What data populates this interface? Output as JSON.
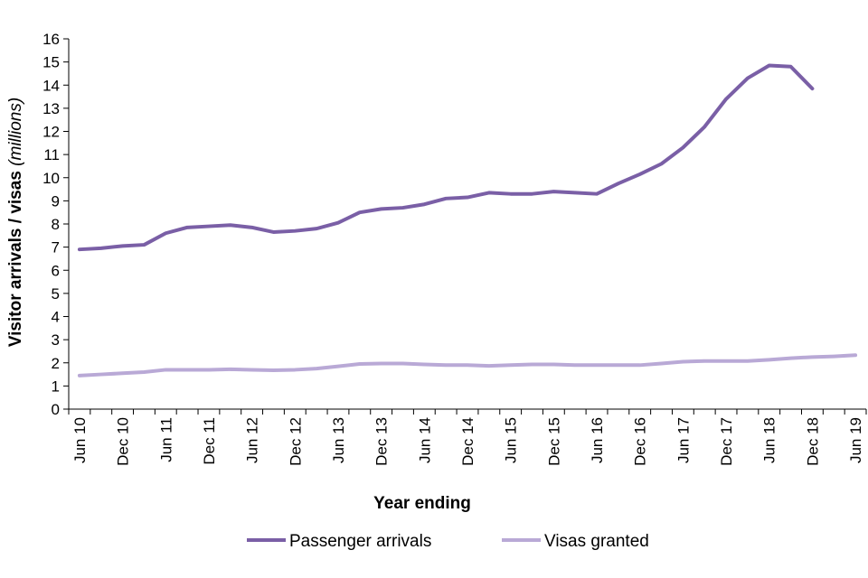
{
  "chart_data": {
    "type": "line",
    "title": "",
    "xlabel": "Year ending",
    "ylabel": "Visitor arrivals / visas",
    "ylabel_unit": "(millions)",
    "ylim": [
      0,
      16
    ],
    "y_ticks": [
      "0",
      "1",
      "2",
      "3",
      "4",
      "5",
      "6",
      "7",
      "8",
      "9",
      "10",
      "11",
      "12",
      "13",
      "14",
      "15",
      "16"
    ],
    "grid": false,
    "legend_position": "bottom",
    "x": [
      "Jun 10",
      "Sep 10",
      "Dec 10",
      "Mar 11",
      "Jun 11",
      "Sep 11",
      "Dec 11",
      "Mar 12",
      "Jun 12",
      "Sep 12",
      "Dec 12",
      "Mar 13",
      "Jun 13",
      "Sep 13",
      "Dec 13",
      "Mar 14",
      "Jun 14",
      "Sep 14",
      "Dec 14",
      "Mar 15",
      "Jun 15",
      "Sep 15",
      "Dec 15",
      "Mar 16",
      "Jun 16",
      "Sep 16",
      "Dec 16",
      "Mar 17",
      "Jun 17",
      "Sep 17",
      "Dec 17",
      "Mar 18",
      "Jun 18",
      "Sep 18",
      "Dec 18",
      "Mar 19",
      "Jun 19"
    ],
    "tick_labels": [
      "Jun 10",
      "Dec 10",
      "Jun 11",
      "Dec 11",
      "Jun 12",
      "Dec 12",
      "Jun 13",
      "Dec 13",
      "Jun 14",
      "Dec 14",
      "Jun 15",
      "Dec 15",
      "Jun 16",
      "Dec 16",
      "Jun 17",
      "Dec 17",
      "Jun 18",
      "Dec 18",
      "Jun 19"
    ],
    "series": [
      {
        "name": "Passenger arrivals",
        "color": "#7a5fa6",
        "values": [
          6.9,
          6.95,
          7.05,
          7.1,
          7.6,
          7.85,
          7.9,
          7.95,
          7.85,
          7.65,
          7.7,
          7.8,
          8.05,
          8.5,
          8.65,
          8.7,
          8.85,
          9.1,
          9.15,
          9.35,
          9.3,
          9.3,
          9.4,
          9.35,
          9.3,
          9.75,
          10.15,
          10.6,
          11.3,
          12.2,
          13.4,
          14.3,
          14.85,
          14.8,
          13.85,
          null,
          null
        ]
      },
      {
        "name": "Visas granted",
        "color": "#b9a9d6",
        "values": [
          1.45,
          1.5,
          1.55,
          1.6,
          1.7,
          1.7,
          1.7,
          1.72,
          1.7,
          1.68,
          1.7,
          1.75,
          1.85,
          1.95,
          1.97,
          1.97,
          1.93,
          1.9,
          1.9,
          1.87,
          1.9,
          1.93,
          1.93,
          1.9,
          1.9,
          1.9,
          1.9,
          1.97,
          2.05,
          2.08,
          2.08,
          2.08,
          2.13,
          2.2,
          2.25,
          2.28,
          2.33
        ]
      }
    ]
  }
}
